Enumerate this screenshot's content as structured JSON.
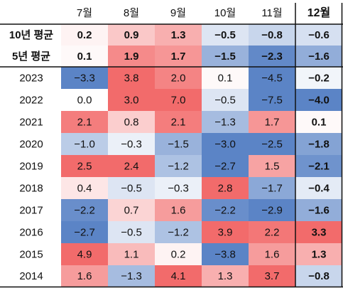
{
  "chart_data": {
    "type": "heatmap",
    "columns": [
      "7월",
      "8월",
      "9월",
      "10월",
      "11월",
      "12월"
    ],
    "rows": [
      "10년 평균",
      "5년 평균",
      "2023",
      "2022",
      "2021",
      "2020",
      "2019",
      "2018",
      "2017",
      "2016",
      "2015",
      "2014"
    ],
    "values": [
      [
        0.2,
        0.9,
        1.3,
        -0.5,
        -0.8,
        -0.6
      ],
      [
        0.1,
        1.9,
        1.7,
        -1.5,
        -2.3,
        -1.6
      ],
      [
        -3.3,
        3.8,
        2.0,
        0.1,
        -4.5,
        -0.2
      ],
      [
        0.0,
        3.0,
        7.0,
        -0.5,
        -7.5,
        -4.0
      ],
      [
        2.1,
        0.8,
        2.1,
        -1.3,
        1.7,
        0.1
      ],
      [
        -1.0,
        -0.3,
        -1.5,
        -3.0,
        -2.5,
        -1.8
      ],
      [
        2.5,
        2.4,
        -1.2,
        -2.7,
        1.5,
        -2.1
      ],
      [
        0.4,
        -0.5,
        -0.3,
        2.8,
        -1.7,
        -0.4
      ],
      [
        -2.2,
        0.7,
        1.6,
        -2.2,
        -2.9,
        -1.6
      ],
      [
        -2.7,
        -0.5,
        -1.2,
        3.9,
        2.2,
        3.3
      ],
      [
        4.9,
        1.1,
        0.2,
        -3.8,
        1.6,
        1.3
      ],
      [
        1.6,
        -1.3,
        4.1,
        1.3,
        3.7,
        -0.8
      ]
    ],
    "value_labels": [
      [
        "0.2",
        "0.9",
        "1.3",
        "−0.5",
        "−0.8",
        "−0.6"
      ],
      [
        "0.1",
        "1.9",
        "1.7",
        "−1.5",
        "−2.3",
        "−1.6"
      ],
      [
        "−3.3",
        "3.8",
        "2.0",
        "0.1",
        "−4.5",
        "−0.2"
      ],
      [
        "0.0",
        "3.0",
        "7.0",
        "−0.5",
        "−7.5",
        "−4.0"
      ],
      [
        "2.1",
        "0.8",
        "2.1",
        "−1.3",
        "1.7",
        "0.1"
      ],
      [
        "−1.0",
        "−0.3",
        "−1.5",
        "−3.0",
        "−2.5",
        "−1.8"
      ],
      [
        "2.5",
        "2.4",
        "−1.2",
        "−2.7",
        "1.5",
        "−2.1"
      ],
      [
        "0.4",
        "−0.5",
        "−0.3",
        "2.8",
        "−1.7",
        "−0.4"
      ],
      [
        "−2.2",
        "0.7",
        "1.6",
        "−2.2",
        "−2.9",
        "−1.6"
      ],
      [
        "−2.7",
        "−0.5",
        "−1.2",
        "3.9",
        "2.2",
        "3.3"
      ],
      [
        "4.9",
        "1.1",
        "0.2",
        "−3.8",
        "1.6",
        "1.3"
      ],
      [
        "1.6",
        "−1.3",
        "4.1",
        "1.3",
        "3.7",
        "−0.8"
      ]
    ],
    "bold_column": "12월",
    "bold_rows": [
      "10년 평균",
      "5년 평균"
    ],
    "colors": {
      "positive": "#f26b6b",
      "negative": "#5b84c6",
      "neutral": "#ffffff",
      "text": "#111111",
      "border": "#111111"
    }
  }
}
